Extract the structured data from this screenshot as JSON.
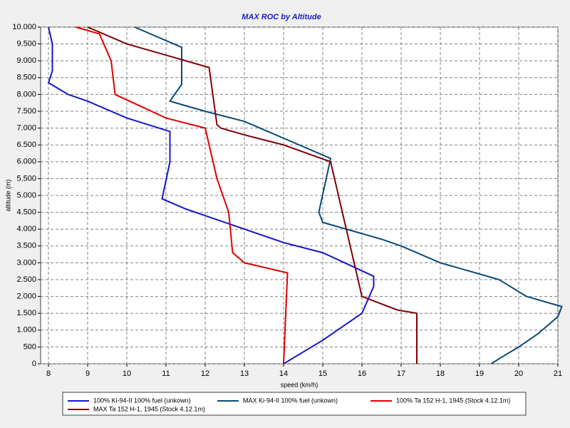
{
  "chart_data": {
    "type": "line",
    "title": "MAX ROC by Altitude",
    "xlabel": "speed (km/h)",
    "ylabel": "altitude (m)",
    "xlim": [
      7.8,
      21
    ],
    "ylim": [
      0,
      10000
    ],
    "xticks": [
      8,
      9,
      10,
      11,
      12,
      13,
      14,
      15,
      16,
      17,
      18,
      19,
      20,
      21
    ],
    "yticks": [
      0,
      500,
      {
        "value": 1000,
        "label": "1.000"
      },
      {
        "value": 1500,
        "label": "1.500"
      },
      {
        "value": 2000,
        "label": "2.000"
      },
      {
        "value": 2500,
        "label": "2.500"
      },
      {
        "value": 3000,
        "label": "3.000"
      },
      {
        "value": 3500,
        "label": "3.500"
      },
      {
        "value": 4000,
        "label": "4.000"
      },
      {
        "value": 4500,
        "label": "4.500"
      },
      {
        "value": 5000,
        "label": "5.000"
      },
      {
        "value": 5500,
        "label": "5.500"
      },
      {
        "value": 6000,
        "label": "6.000"
      },
      {
        "value": 6500,
        "label": "6.500"
      },
      {
        "value": 7000,
        "label": "7.000"
      },
      {
        "value": 7500,
        "label": "7.500"
      },
      {
        "value": 8000,
        "label": "8.000"
      },
      {
        "value": 8500,
        "label": "8.500"
      },
      {
        "value": 9000,
        "label": "9.000"
      },
      {
        "value": 9500,
        "label": "9.500"
      },
      {
        "value": 10000,
        "label": "10.000"
      }
    ],
    "grid": true,
    "series": [
      {
        "name": "100% Ki-94-II 100% fuel (unkown)",
        "color": "#1515d0",
        "x": [
          14.0,
          15.0,
          16.0,
          16.3,
          16.3,
          15.0,
          14.0,
          13.0,
          12.0,
          11.5,
          10.9,
          11.1,
          11.1,
          10.0,
          9.0,
          8.5,
          8.0,
          8.1,
          8.1,
          8.0
        ],
        "values": [
          0,
          700,
          1500,
          2300,
          2600,
          3300,
          3600,
          4000,
          4400,
          4600,
          4900,
          6000,
          6900,
          7300,
          7800,
          8000,
          8350,
          8700,
          9500,
          10000
        ]
      },
      {
        "name": "MAX Ki-94-II 100% fuel (unkown)",
        "color": "#0a4a7a",
        "x": [
          19.3,
          19.5,
          20.0,
          20.5,
          21.0,
          21.1,
          20.2,
          19.5,
          18.0,
          17.0,
          16.5,
          15.0,
          14.9,
          15.2,
          14.0,
          13.0,
          12.0,
          11.1,
          11.4,
          11.4,
          10.2
        ],
        "values": [
          0,
          150,
          500,
          900,
          1400,
          1700,
          2000,
          2500,
          3000,
          3500,
          3700,
          4200,
          4500,
          6100,
          6700,
          7200,
          7500,
          7800,
          8300,
          9400,
          10000
        ]
      },
      {
        "name": "100% Ta 152 H-1, 1945 (Stock 4.12.1m)",
        "color": "#e00000",
        "x": [
          14.0,
          14.1,
          13.0,
          12.7,
          12.6,
          12.3,
          12.0,
          11.0,
          9.7,
          9.6,
          9.3,
          8.7
        ],
        "values": [
          0,
          2700,
          3000,
          3300,
          4500,
          5500,
          7000,
          7300,
          8000,
          9000,
          9800,
          10000
        ]
      },
      {
        "name": "MAX Ta 152 H-1, 1945 (Stock 4.12.1m)",
        "color": "#800000",
        "x": [
          17.4,
          17.4,
          16.9,
          16.0,
          15.8,
          15.6,
          15.2,
          14.0,
          13.0,
          12.4,
          12.3,
          12.1,
          10.0,
          9.0
        ],
        "values": [
          0,
          1500,
          1600,
          2000,
          3000,
          4000,
          6000,
          6500,
          6800,
          7000,
          7100,
          8800,
          9500,
          10000
        ]
      }
    ]
  }
}
